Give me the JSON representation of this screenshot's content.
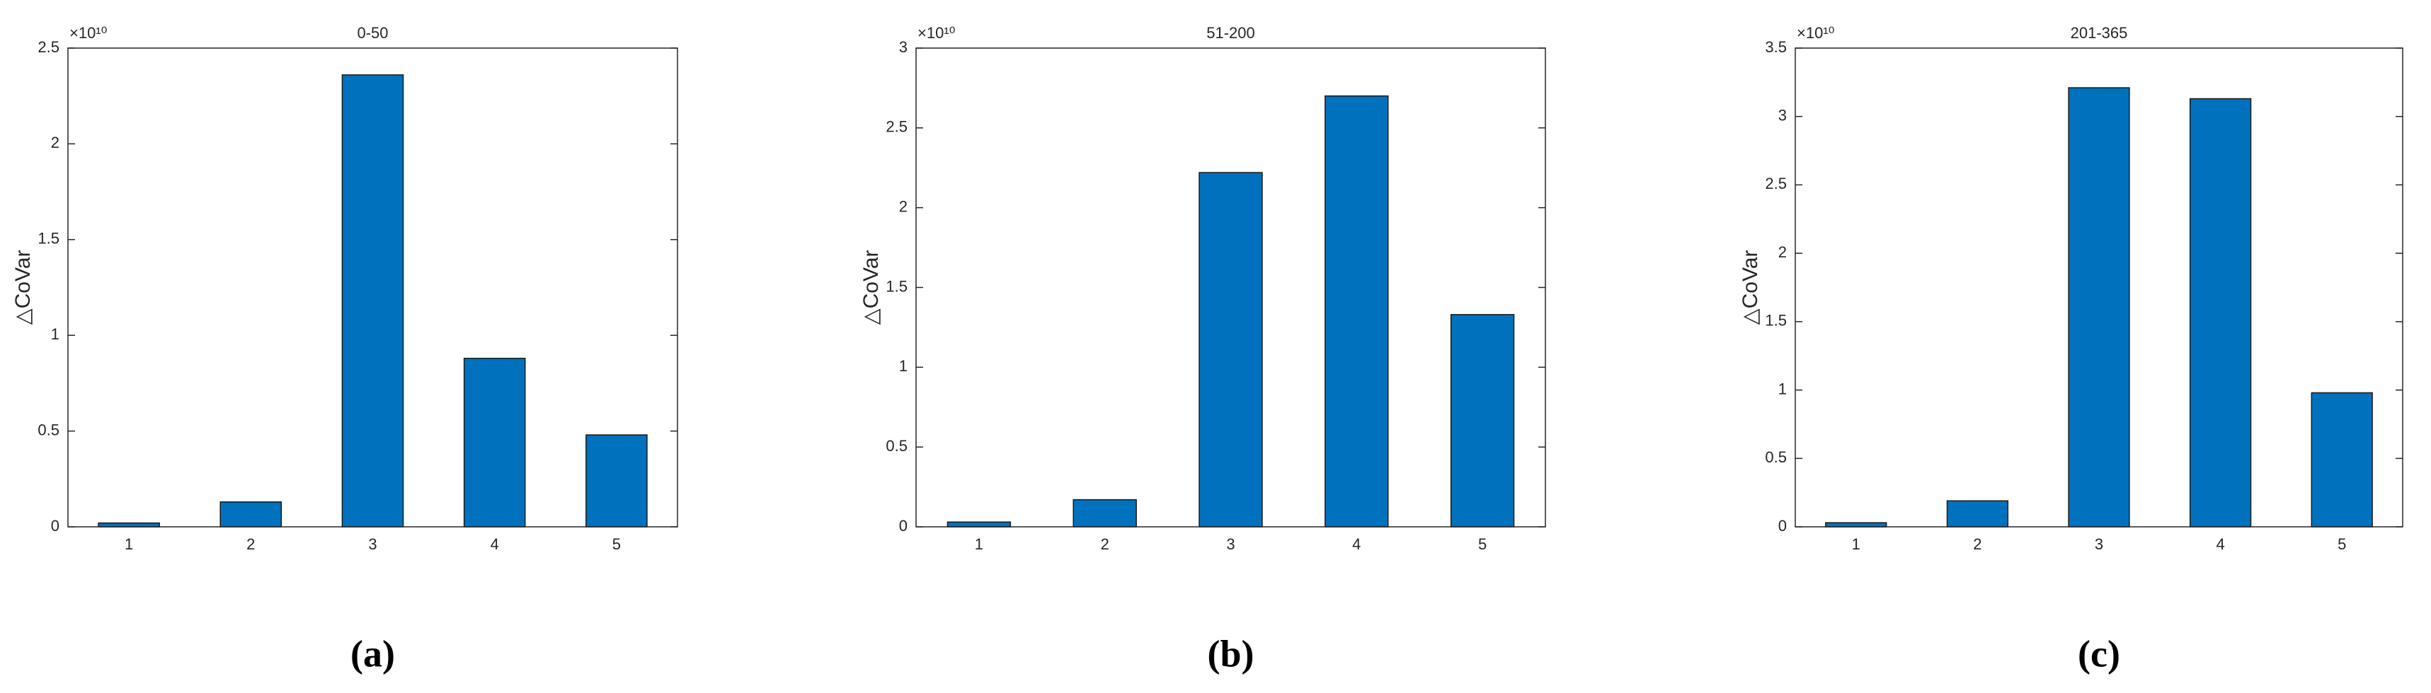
{
  "chart_data": [
    {
      "type": "bar",
      "title": "0-50",
      "ylabel": "△CoVar",
      "y_exponent": "×10¹⁰",
      "caption": "(a)",
      "categories": [
        "1",
        "2",
        "3",
        "4",
        "5"
      ],
      "values": [
        0.02,
        0.13,
        2.36,
        0.88,
        0.48
      ],
      "color": "#0072bd",
      "ylim": [
        0,
        2.5
      ],
      "yticks": [
        0,
        0.5,
        1,
        1.5,
        2,
        2.5
      ]
    },
    {
      "type": "bar",
      "title": "51-200",
      "ylabel": "△CoVar",
      "y_exponent": "×10¹⁰",
      "caption": "(b)",
      "categories": [
        "1",
        "2",
        "3",
        "4",
        "5"
      ],
      "values": [
        0.03,
        0.17,
        2.22,
        2.7,
        1.33
      ],
      "color": "#0072bd",
      "ylim": [
        0,
        3
      ],
      "yticks": [
        0,
        0.5,
        1,
        1.5,
        2,
        2.5,
        3
      ]
    },
    {
      "type": "bar",
      "title": "201-365",
      "ylabel": "△CoVar",
      "y_exponent": "×10¹⁰",
      "caption": "(c)",
      "categories": [
        "1",
        "2",
        "3",
        "4",
        "5"
      ],
      "values": [
        0.03,
        0.19,
        3.21,
        3.13,
        0.98
      ],
      "color": "#0072bd",
      "ylim": [
        0,
        3.5
      ],
      "yticks": [
        0,
        0.5,
        1,
        1.5,
        2,
        2.5,
        3,
        3.5
      ]
    }
  ]
}
